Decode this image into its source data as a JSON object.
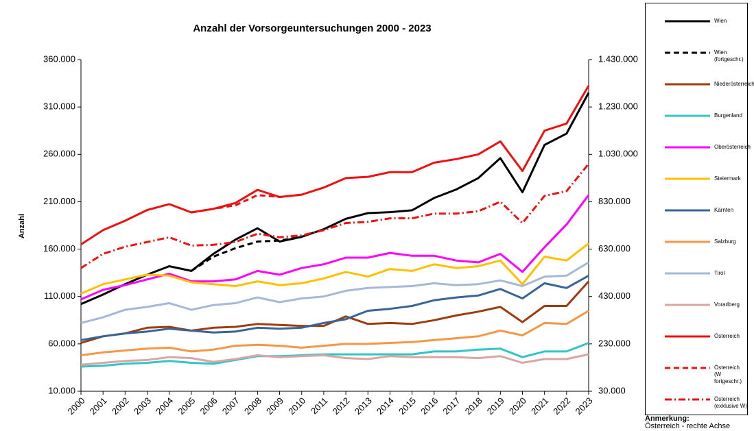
{
  "chart_data": {
    "type": "line",
    "title": "Anzahl der Vorsorgeuntersuchungen 2000 - 2023",
    "y_label": "Anzahl",
    "annotation": [
      "Anmerkung:",
      "Österreich - rechte Achse"
    ],
    "categories": [
      "2000",
      "2001",
      "2002",
      "2003",
      "2004",
      "2005",
      "2006",
      "2007",
      "2008",
      "2009",
      "2010",
      "2011",
      "2012",
      "2013",
      "2014",
      "2015",
      "2016",
      "2017",
      "2018",
      "2019",
      "2020",
      "2021",
      "2022",
      "2023"
    ],
    "ylim": [
      10000,
      360000
    ],
    "yticks": [
      {
        "value": 10000,
        "label": "10.000"
      },
      {
        "value": 60000,
        "label": "60.000"
      },
      {
        "value": 110000,
        "label": "110.000"
      },
      {
        "value": 160000,
        "label": "160.000"
      },
      {
        "value": 210000,
        "label": "210.000"
      },
      {
        "value": 260000,
        "label": "260.000"
      },
      {
        "value": 310000,
        "label": "310.000"
      },
      {
        "value": 360000,
        "label": "360.000"
      }
    ],
    "y2lim": [
      30000,
      1430000
    ],
    "y2ticks": [
      {
        "value": 30000,
        "label": "30.000"
      },
      {
        "value": 230000,
        "label": "230.000"
      },
      {
        "value": 430000,
        "label": "430.000"
      },
      {
        "value": 630000,
        "label": "630.000"
      },
      {
        "value": 830000,
        "label": "830.000"
      },
      {
        "value": 1030000,
        "label": "1.030.000"
      },
      {
        "value": 1230000,
        "label": "1.230.000"
      },
      {
        "value": 1430000,
        "label": "1.430.000"
      }
    ],
    "series": [
      {
        "name": "Wien",
        "color": "#000000",
        "line_style": "solid",
        "values": [
          102000,
          112000,
          123000,
          133000,
          142000,
          137000,
          155000,
          170000,
          182000,
          168000,
          173000,
          181000,
          192000,
          198000,
          199000,
          201000,
          214000,
          223000,
          235000,
          256000,
          220000,
          270000,
          282000,
          325000
        ]
      },
      {
        "name": "Wien (fortgeschr.)",
        "color": "#000000",
        "line_style": "dashed",
        "values": [
          null,
          null,
          null,
          null,
          null,
          137000,
          152000,
          161000,
          168000,
          169000,
          173000,
          null,
          null,
          null,
          null,
          null,
          null,
          null,
          null,
          null,
          null,
          null,
          null,
          null
        ]
      },
      {
        "name": "Niederösterreich",
        "color": "#9c3d0f",
        "line_style": "solid",
        "values": [
          61000,
          68000,
          71000,
          77000,
          78000,
          74000,
          77000,
          78000,
          81000,
          80000,
          79000,
          79000,
          89000,
          81000,
          82000,
          81000,
          85000,
          90000,
          94000,
          99000,
          83000,
          100000,
          100000,
          126000
        ]
      },
      {
        "name": "Burgenland",
        "color": "#33c4c4",
        "line_style": "solid",
        "values": [
          36000,
          37000,
          39000,
          40000,
          42000,
          40000,
          39000,
          43000,
          47000,
          47000,
          48000,
          49000,
          49000,
          49000,
          49000,
          49000,
          52000,
          52000,
          54000,
          55000,
          46000,
          52000,
          52000,
          61000
        ]
      },
      {
        "name": "Oberösterreich",
        "color": "#ff00ff",
        "line_style": "solid",
        "values": [
          107000,
          117000,
          122000,
          128000,
          134000,
          126000,
          126000,
          128000,
          137000,
          133000,
          140000,
          144000,
          151000,
          151000,
          156000,
          153000,
          153000,
          148000,
          146000,
          155000,
          136000,
          162000,
          186000,
          217000
        ]
      },
      {
        "name": "Steiermark",
        "color": "#ffc000",
        "line_style": "solid",
        "values": [
          113000,
          123000,
          128000,
          133000,
          132000,
          125000,
          123000,
          121000,
          126000,
          122000,
          124000,
          129000,
          136000,
          131000,
          139000,
          137000,
          144000,
          140000,
          142000,
          148000,
          123000,
          152000,
          148000,
          166000
        ]
      },
      {
        "name": "Kärnten",
        "color": "#3a6496",
        "line_style": "solid",
        "values": [
          64000,
          68000,
          71000,
          73000,
          76000,
          74000,
          72000,
          73000,
          77000,
          76000,
          77000,
          82000,
          86000,
          95000,
          97000,
          100000,
          106000,
          109000,
          111000,
          118000,
          108000,
          124000,
          119000,
          132000
        ]
      },
      {
        "name": "Salzburg",
        "color": "#f79646",
        "line_style": "solid",
        "values": [
          48000,
          51000,
          53000,
          55000,
          56000,
          52000,
          54000,
          58000,
          59000,
          58000,
          56000,
          58000,
          60000,
          60000,
          61000,
          62000,
          64000,
          66000,
          68000,
          74000,
          69000,
          82000,
          81000,
          95000
        ]
      },
      {
        "name": "Tirol",
        "color": "#a6b8d8",
        "line_style": "solid",
        "values": [
          82000,
          88000,
          96000,
          99000,
          103000,
          96000,
          101000,
          103000,
          109000,
          104000,
          108000,
          110000,
          116000,
          119000,
          120000,
          121000,
          124000,
          122000,
          123000,
          127000,
          121000,
          131000,
          132000,
          146000
        ]
      },
      {
        "name": "Vorarlberg",
        "color": "#d9a5a5",
        "line_style": "solid",
        "values": [
          38000,
          40000,
          42000,
          43000,
          46000,
          45000,
          41000,
          44000,
          48000,
          46000,
          47000,
          48000,
          45000,
          44000,
          47000,
          46000,
          46000,
          46000,
          45000,
          47000,
          40000,
          44000,
          44000,
          49000
        ]
      },
      {
        "name": "Österreich",
        "color": "#ee1111",
        "line_style": "solid",
        "axis": "y2",
        "values": [
          650000,
          710000,
          750000,
          795000,
          820000,
          785000,
          800000,
          825000,
          880000,
          850000,
          860000,
          890000,
          930000,
          935000,
          955000,
          955000,
          995000,
          1010000,
          1030000,
          1085000,
          960000,
          1130000,
          1160000,
          1320000
        ]
      },
      {
        "name": "Österreich (W fortgeschr.)",
        "color": "#ee1111",
        "line_style": "dashed",
        "axis": "y2",
        "values": [
          null,
          null,
          null,
          null,
          null,
          785000,
          800000,
          815000,
          858000,
          850000,
          860000,
          null,
          null,
          null,
          null,
          null,
          null,
          null,
          null,
          null,
          null,
          null,
          null,
          null
        ]
      },
      {
        "name": "Österreich (exklusive W)",
        "color": "#ee1111",
        "line_style": "dashdot",
        "axis": "y2",
        "values": [
          550000,
          610000,
          640000,
          660000,
          680000,
          645000,
          648000,
          660000,
          695000,
          680000,
          688000,
          710000,
          740000,
          745000,
          760000,
          760000,
          780000,
          780000,
          790000,
          830000,
          740000,
          855000,
          875000,
          990000
        ]
      }
    ]
  }
}
